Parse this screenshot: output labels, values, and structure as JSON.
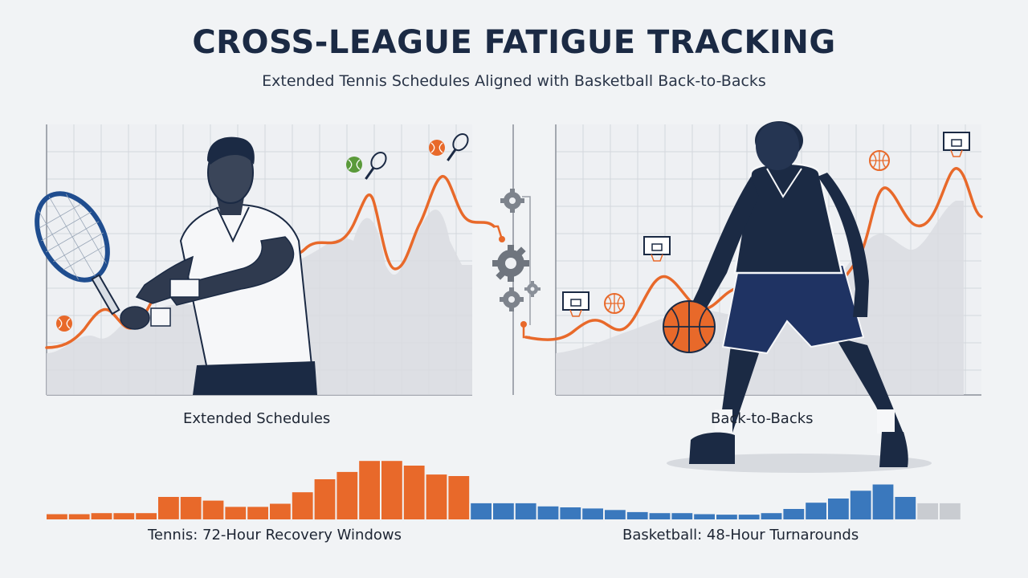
{
  "title": "CROSS-LEAGUE FATIGUE TRACKING",
  "subtitle": "Extended Tennis Schedules Aligned with Basketball Back-to-Backs",
  "panels": {
    "left_label": "Extended Schedules",
    "right_label": "Back-to-Backs"
  },
  "bottom": {
    "tennis_label": "Tennis: 72-Hour Recovery Windows",
    "basketball_label": "Basketball: 48-Hour Turnarounds"
  },
  "colors": {
    "tennis": "#e8692a",
    "basketball": "#3a78bd",
    "neutral": "#c9ccd1",
    "navy": "#1b2a44",
    "grid": "#d3d7dc"
  },
  "icons": [
    "tennis-racket-icon",
    "tennis-ball-icon",
    "basketball-icon",
    "hoop-icon",
    "gear-icon"
  ],
  "bars": {
    "tennis": [
      1,
      1,
      1.2,
      1.2,
      1.2,
      4.3,
      4.3,
      3.6,
      2.4,
      2.4,
      3,
      5.2,
      7.7,
      9.1,
      11.2,
      11.2,
      10.3,
      8.6,
      8.3
    ],
    "basketball": [
      3.1,
      3.1,
      3.1,
      2.5,
      2.3,
      2.1,
      1.8,
      1.4,
      1.2,
      1.2,
      1,
      0.9,
      0.9,
      1.2,
      2,
      3.2,
      4,
      5.5,
      6.7,
      4.3
    ],
    "neutral": [
      3.1,
      3.1
    ]
  }
}
